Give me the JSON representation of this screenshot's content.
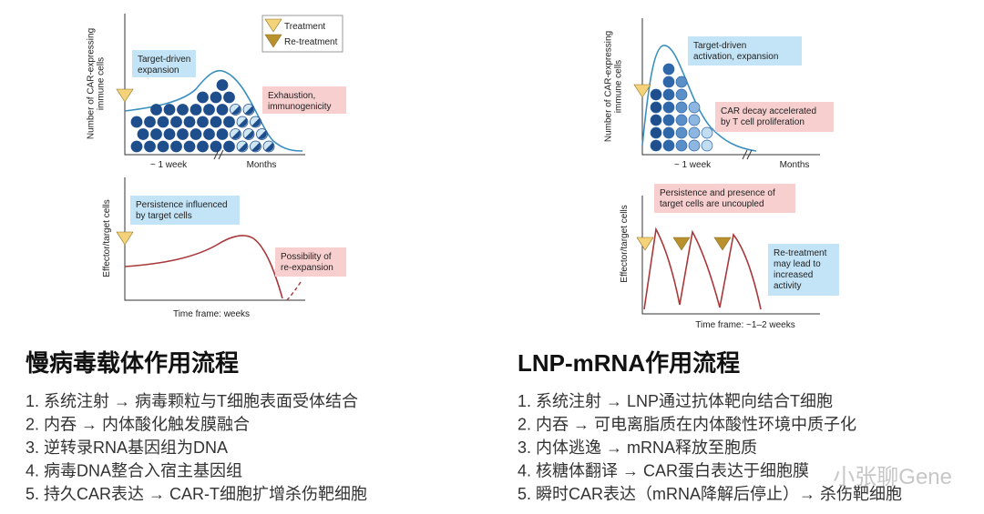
{
  "left": {
    "legend": [
      "Treatment",
      "Re-treatment"
    ],
    "top": {
      "y_label": [
        "Number of CAR-expressing",
        "immune cells"
      ],
      "box_blue": [
        "Target-driven",
        "expansion"
      ],
      "box_pink": [
        "Exhaustion,",
        "immunogenicity"
      ],
      "x_labels": [
        "~ 1 week",
        "Months"
      ]
    },
    "bottom": {
      "y_label": [
        "Effector/target cells"
      ],
      "box_blue": [
        "Persistence influenced",
        "by target cells"
      ],
      "box_pink": [
        "Possibility of",
        "re-expansion"
      ],
      "x_label": "Time frame: weeks"
    }
  },
  "right": {
    "top": {
      "y_label": [
        "Number of CAR-expressing",
        "immune cells"
      ],
      "box_blue": [
        "Target-driven",
        "activation, expansion"
      ],
      "box_pink": [
        "CAR decay accelerated",
        "by T cell proliferation"
      ],
      "x_labels": [
        "~ 1 week",
        "Months"
      ]
    },
    "bottom": {
      "y_label": [
        "Effector/target cells"
      ],
      "box_pink": [
        "Persistence and presence of",
        "target cells are uncoupled"
      ],
      "box_blue": [
        "Re-treatment",
        "may lead to",
        "increased",
        "activity"
      ],
      "x_label": "Time frame: ~1–2 weeks"
    }
  },
  "sections": [
    {
      "title": "慢病毒载体作用流程",
      "steps": [
        "1. 系统注射 → 病毒颗粒与T细胞表面受体结合",
        "2. 内吞 → 内体酸化触发膜融合",
        "3. 逆转录RNA基因组为DNA",
        "4. 病毒DNA整合入宿主基因组",
        "5. 持久CAR表达 → CAR-T细胞扩增杀伤靶细胞"
      ]
    },
    {
      "title": "LNP-mRNA作用流程",
      "steps": [
        "1. 系统注射 → LNP通过抗体靶向结合T细胞",
        "2. 内吞 → 可电离脂质在内体酸性环境中质子化",
        "3. 内体逃逸 → mRNA释放至胞质",
        "4. 核糖体翻译 → CAR蛋白表达于细胞膜",
        "5. 瞬时CAR表达（mRNA降解后停止）→ 杀伤靶细胞"
      ]
    }
  ],
  "watermark": "小张聊Gene"
}
